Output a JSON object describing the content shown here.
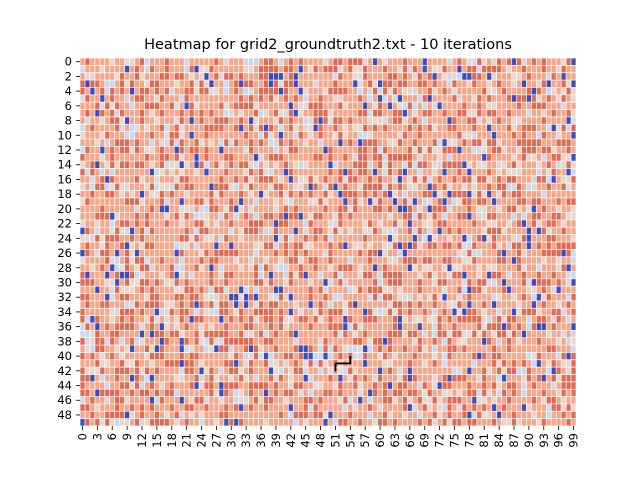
{
  "chart_data": {
    "type": "heatmap",
    "title": "Heatmap for grid2_groundtruth2.txt - 10 iterations",
    "xlabel": "",
    "ylabel": "",
    "rows": 50,
    "cols": 100,
    "x_tick_labels": [
      "0",
      "3",
      "6",
      "9",
      "12",
      "15",
      "18",
      "21",
      "24",
      "27",
      "30",
      "33",
      "36",
      "39",
      "42",
      "45",
      "48",
      "51",
      "54",
      "57",
      "60",
      "63",
      "66",
      "69",
      "72",
      "75",
      "78",
      "81",
      "84",
      "87",
      "90",
      "93",
      "96",
      "99"
    ],
    "y_tick_labels": [
      "0",
      "2",
      "4",
      "6",
      "8",
      "10",
      "12",
      "14",
      "16",
      "18",
      "20",
      "22",
      "24",
      "26",
      "28",
      "30",
      "32",
      "34",
      "36",
      "38",
      "40",
      "42",
      "44",
      "46",
      "48"
    ],
    "colormap": "coolwarm",
    "value_levels": [
      0,
      1,
      2,
      3,
      4
    ],
    "level_colors": [
      "#3b4cc0",
      "#cbd8ee",
      "#e8d7cf",
      "#f4a78b",
      "#de6b54"
    ],
    "level_weights": [
      0.06,
      0.07,
      0.13,
      0.46,
      0.28
    ],
    "grid_lines": true,
    "grid_color": "#ffffff",
    "colorbar": false,
    "path_marker": {
      "color": "#000000",
      "points": [
        [
          51,
          41
        ],
        [
          54,
          41
        ],
        [
          54,
          40
        ]
      ]
    }
  }
}
